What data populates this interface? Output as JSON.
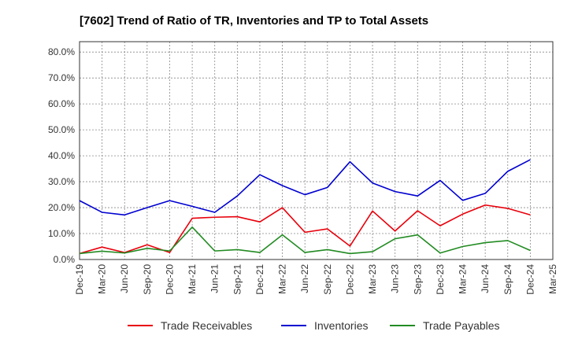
{
  "chart_data": {
    "type": "line",
    "title": "[7602]  Trend of Ratio of TR, Inventories and TP to Total Assets",
    "xlabel": "",
    "ylabel": "",
    "x": [
      "Dec-19",
      "Mar-20",
      "Jun-20",
      "Sep-20",
      "Dec-20",
      "Mar-21",
      "Jun-21",
      "Sep-21",
      "Dec-21",
      "Mar-22",
      "Jun-22",
      "Sep-22",
      "Dec-22",
      "Mar-23",
      "Jun-23",
      "Sep-23",
      "Dec-23",
      "Mar-24",
      "Jun-24",
      "Sep-24",
      "Dec-24",
      "Mar-25"
    ],
    "ylim": [
      0,
      0.84
    ],
    "yticks": [
      0,
      0.1,
      0.2,
      0.3,
      0.4,
      0.5,
      0.6,
      0.7,
      0.8
    ],
    "ytick_labels": [
      "0.0%",
      "10.0%",
      "20.0%",
      "30.0%",
      "40.0%",
      "50.0%",
      "60.0%",
      "70.0%",
      "80.0%"
    ],
    "grid": true,
    "legend_position": "bottom",
    "series": [
      {
        "name": "Trade Receivables",
        "color": "#e8000b",
        "values": [
          0.023,
          0.048,
          0.027,
          0.057,
          0.027,
          0.159,
          0.163,
          0.165,
          0.145,
          0.2,
          0.105,
          0.118,
          0.052,
          0.187,
          0.11,
          0.188,
          0.13,
          0.175,
          0.21,
          0.197,
          0.172,
          null
        ]
      },
      {
        "name": "Inventories",
        "color": "#0000d0",
        "values": [
          0.227,
          0.182,
          0.172,
          0.2,
          0.227,
          0.205,
          0.182,
          0.245,
          0.327,
          0.285,
          0.25,
          0.278,
          0.377,
          0.295,
          0.262,
          0.245,
          0.305,
          0.228,
          0.255,
          0.34,
          0.385,
          null
        ]
      },
      {
        "name": "Trade Payables",
        "color": "#228b22",
        "values": [
          0.023,
          0.032,
          0.025,
          0.043,
          0.033,
          0.125,
          0.033,
          0.038,
          0.027,
          0.095,
          0.027,
          0.038,
          0.023,
          0.03,
          0.08,
          0.095,
          0.025,
          0.05,
          0.065,
          0.073,
          0.035,
          null
        ]
      }
    ]
  }
}
